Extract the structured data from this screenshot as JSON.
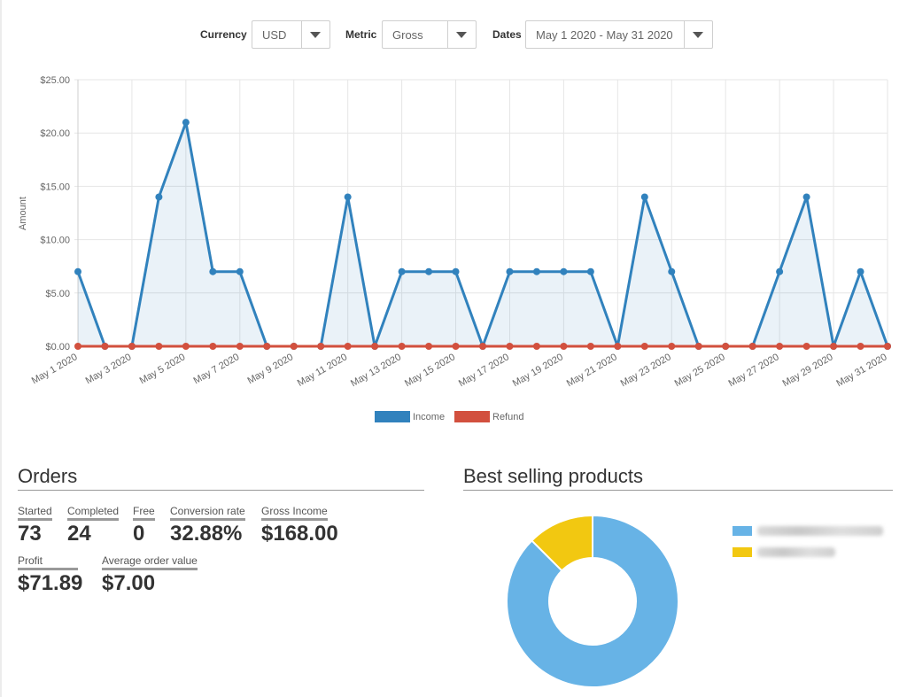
{
  "filters": {
    "currency": {
      "label": "Currency",
      "value": "USD"
    },
    "metric": {
      "label": "Metric",
      "value": "Gross"
    },
    "dates": {
      "label": "Dates",
      "value": "May 1 2020 - May 31 2020"
    }
  },
  "chart_data": {
    "type": "line",
    "ylabel": "Amount",
    "xlabel": "",
    "ylim": [
      0,
      25
    ],
    "yticks": [
      "$0.00",
      "$5.00",
      "$10.00",
      "$15.00",
      "$20.00",
      "$25.00"
    ],
    "grid": true,
    "legend_position": "bottom",
    "x": [
      "May 1 2020",
      "May 2 2020",
      "May 3 2020",
      "May 4 2020",
      "May 5 2020",
      "May 6 2020",
      "May 7 2020",
      "May 8 2020",
      "May 9 2020",
      "May 10 2020",
      "May 11 2020",
      "May 12 2020",
      "May 13 2020",
      "May 14 2020",
      "May 15 2020",
      "May 16 2020",
      "May 17 2020",
      "May 18 2020",
      "May 19 2020",
      "May 20 2020",
      "May 21 2020",
      "May 22 2020",
      "May 23 2020",
      "May 24 2020",
      "May 25 2020",
      "May 26 2020",
      "May 27 2020",
      "May 28 2020",
      "May 29 2020",
      "May 30 2020",
      "May 31 2020"
    ],
    "series": [
      {
        "name": "Income",
        "color": "#3182bd",
        "fill": true,
        "values": [
          7,
          0,
          0,
          14,
          21,
          7,
          7,
          0,
          0,
          0,
          14,
          0,
          7,
          7,
          7,
          0,
          7,
          7,
          7,
          7,
          0,
          14,
          7,
          0,
          0,
          0,
          7,
          14,
          0,
          7,
          0
        ]
      },
      {
        "name": "Refund",
        "color": "#d2503e",
        "fill": false,
        "values": [
          0,
          0,
          0,
          0,
          0,
          0,
          0,
          0,
          0,
          0,
          0,
          0,
          0,
          0,
          0,
          0,
          0,
          0,
          0,
          0,
          0,
          0,
          0,
          0,
          0,
          0,
          0,
          0,
          0,
          0,
          0
        ]
      }
    ]
  },
  "orders": {
    "title": "Orders",
    "metrics": [
      {
        "label": "Started",
        "value": "73"
      },
      {
        "label": "Completed",
        "value": "24"
      },
      {
        "label": "Free",
        "value": "0"
      },
      {
        "label": "Conversion rate",
        "value": "32.88%"
      },
      {
        "label": "Gross Income",
        "value": "$168.00"
      },
      {
        "label": "Profit",
        "value": "$71.89"
      },
      {
        "label": "Average order value",
        "value": "$7.00"
      }
    ]
  },
  "best_selling": {
    "title": "Best selling products",
    "slices": [
      {
        "value": 0.875,
        "color": "#67b3e6"
      },
      {
        "value": 0.125,
        "color": "#f2c811"
      }
    ]
  }
}
